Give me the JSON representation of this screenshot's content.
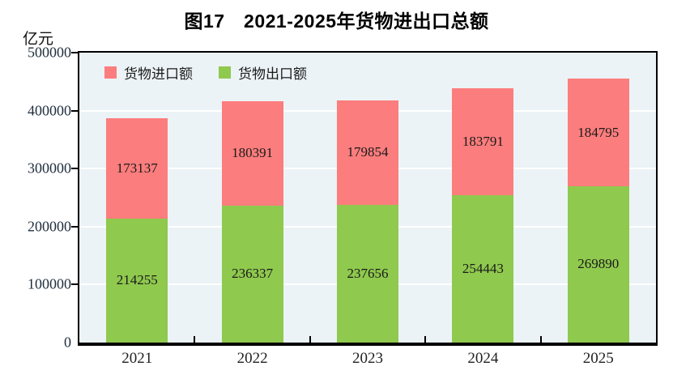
{
  "title": "图17　2021-2025年货物进出口总额",
  "y_unit": "亿元",
  "colors": {
    "import_red": "#fc7d7d",
    "export_green": "#8fc94e",
    "plot_background": "#ecf3f6",
    "gridline": "#ffffff",
    "frame": "#000000"
  },
  "legend": {
    "items": [
      {
        "label": "货物进口额",
        "color": "#fc7d7d"
      },
      {
        "label": "货物出口额",
        "color": "#8fc94e"
      }
    ]
  },
  "chart_data": {
    "type": "bar",
    "stacked": true,
    "title": "图17　2021-2025年货物进出口总额",
    "ylabel": "亿元",
    "categories": [
      "2021",
      "2022",
      "2023",
      "2024",
      "2025"
    ],
    "series": [
      {
        "name": "货物出口额",
        "color": "#8fc94e",
        "values": [
          214255,
          236337,
          237656,
          254443,
          269890
        ]
      },
      {
        "name": "货物进口额",
        "color": "#fc7d7d",
        "values": [
          173137,
          180391,
          179854,
          183791,
          184795
        ]
      }
    ],
    "ylim": [
      0,
      500000
    ],
    "yticks": [
      0,
      100000,
      200000,
      300000,
      400000,
      500000
    ],
    "grid": "horizontal-white",
    "legend_position": "top-left-inside",
    "value_labels": "centered-in-segment"
  }
}
